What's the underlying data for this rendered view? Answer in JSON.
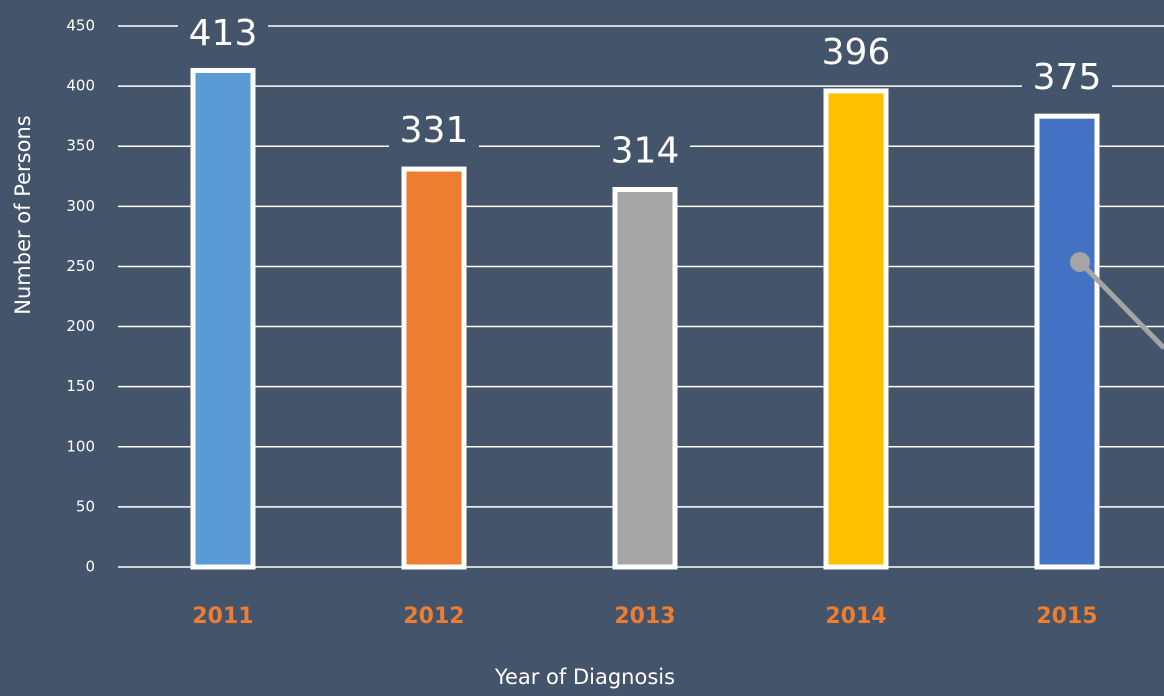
{
  "chart_data": {
    "type": "bar",
    "x_label": "Year of Diagnosis",
    "y_label": "Number of Persons",
    "categories": [
      "2011",
      "2012",
      "2013",
      "2014",
      "2015"
    ],
    "values": [
      413,
      331,
      314,
      396,
      375
    ],
    "colors": [
      "#5b9bd5",
      "#ed7d31",
      "#a5a5a5",
      "#ffc000",
      "#4472c4"
    ],
    "ylim": [
      0,
      450
    ],
    "yticks": [
      0,
      50,
      100,
      150,
      200,
      250,
      300,
      350,
      400,
      450
    ],
    "grid": true
  }
}
